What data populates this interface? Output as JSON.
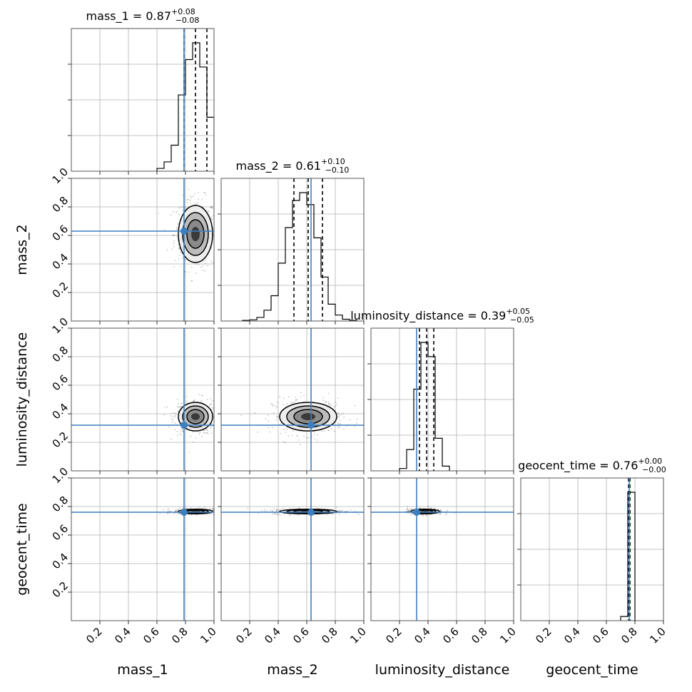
{
  "chart_data": {
    "type": "corner",
    "parameters": [
      "mass_1",
      "mass_2",
      "luminosity_distance",
      "geocent_time"
    ],
    "axis_labels": [
      "mass_1",
      "mass_2",
      "luminosity_distance",
      "geocent_time"
    ],
    "axis_range": [
      0,
      1
    ],
    "tick_labels": [
      "0.2",
      "0.4",
      "0.6",
      "0.8",
      "1.0"
    ],
    "tick_values": [
      0.2,
      0.4,
      0.6,
      0.8,
      1.0
    ],
    "grid": true,
    "truths": {
      "values": [
        0.79,
        0.63,
        0.32,
        0.76
      ],
      "color": "#3b7fc1"
    },
    "titles": [
      {
        "name": "mass_1",
        "prefix": "mass_1 = ",
        "median": "0.87",
        "plus": "+0.08",
        "minus": "−0.08"
      },
      {
        "name": "mass_2",
        "prefix": "mass_2 = ",
        "median": "0.61",
        "plus": "+0.10",
        "minus": "−0.10"
      },
      {
        "name": "luminosity_distance",
        "prefix": "luminosity_distance = ",
        "median": "0.39",
        "plus": "+0.05",
        "minus": "−0.05"
      },
      {
        "name": "geocent_time",
        "prefix": "geocent_time = ",
        "median": "0.76",
        "plus": "+0.00",
        "minus": "−0.00"
      }
    ],
    "quantiles": [
      [
        0.79,
        0.87,
        0.95
      ],
      [
        0.51,
        0.61,
        0.71
      ],
      [
        0.34,
        0.39,
        0.44
      ],
      [
        0.755,
        0.76,
        0.765
      ]
    ],
    "histograms": [
      {
        "bin_edges": [
          0.6,
          0.65,
          0.7,
          0.75,
          0.8,
          0.85,
          0.9,
          0.95,
          1.0
        ],
        "counts": [
          3,
          10,
          28,
          82,
          120,
          138,
          112,
          58
        ]
      },
      {
        "bin_edges": [
          0.15,
          0.2,
          0.25,
          0.3,
          0.35,
          0.4,
          0.45,
          0.5,
          0.55,
          0.6,
          0.65,
          0.7,
          0.75,
          0.8,
          0.85,
          0.9,
          0.95
        ],
        "counts": [
          1,
          2,
          6,
          18,
          42,
          96,
          155,
          200,
          213,
          193,
          138,
          73,
          28,
          10,
          3,
          1
        ]
      },
      {
        "bin_edges": [
          0.2,
          0.25,
          0.3,
          0.35,
          0.4,
          0.45,
          0.5,
          0.55
        ],
        "counts": [
          4,
          36,
          138,
          217,
          193,
          55,
          8
        ]
      },
      {
        "bin_edges": [
          0.7,
          0.75,
          0.8
        ],
        "counts": [
          6,
          183
        ]
      }
    ],
    "distributions": [
      {
        "mean": 0.87,
        "sd": 0.06
      },
      {
        "mean": 0.61,
        "sd": 0.1
      },
      {
        "mean": 0.38,
        "sd": 0.05
      },
      {
        "mean": 0.765,
        "sd": 0.008
      }
    ],
    "line_color": "#000000"
  }
}
